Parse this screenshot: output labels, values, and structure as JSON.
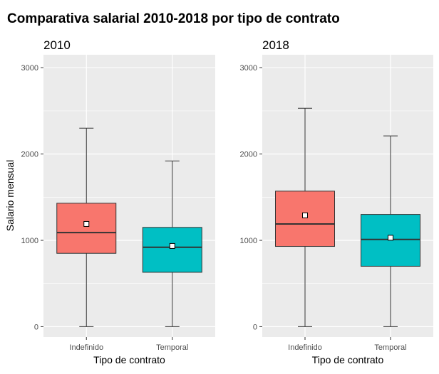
{
  "chart_data": {
    "type": "boxplot",
    "title": "Comparativa salarial 2010-2018 por tipo de contrato",
    "ylabel": "Salario mensual",
    "xlabel": "Tipo de contrato",
    "ylim": [
      -120,
      3150
    ],
    "yticks": [
      0,
      1000,
      2000,
      3000
    ],
    "categories": [
      "Indefinido",
      "Temporal"
    ],
    "colors": {
      "Indefinido": "#F8766D",
      "Temporal": "#00BFC4",
      "panel_bg": "#EBEBEB",
      "grid": "#FFFFFF"
    },
    "grid": true,
    "panels": [
      {
        "title": "2010",
        "boxes": [
          {
            "category": "Indefinido",
            "min": 0,
            "q1": 850,
            "median": 1090,
            "q3": 1430,
            "max": 2300,
            "mean": 1190
          },
          {
            "category": "Temporal",
            "min": 0,
            "q1": 630,
            "median": 920,
            "q3": 1150,
            "max": 1920,
            "mean": 935
          }
        ]
      },
      {
        "title": "2018",
        "boxes": [
          {
            "category": "Indefinido",
            "min": 0,
            "q1": 930,
            "median": 1190,
            "q3": 1570,
            "max": 2530,
            "mean": 1290
          },
          {
            "category": "Temporal",
            "min": 0,
            "q1": 700,
            "median": 1010,
            "q3": 1300,
            "max": 2210,
            "mean": 1030
          }
        ]
      }
    ]
  }
}
